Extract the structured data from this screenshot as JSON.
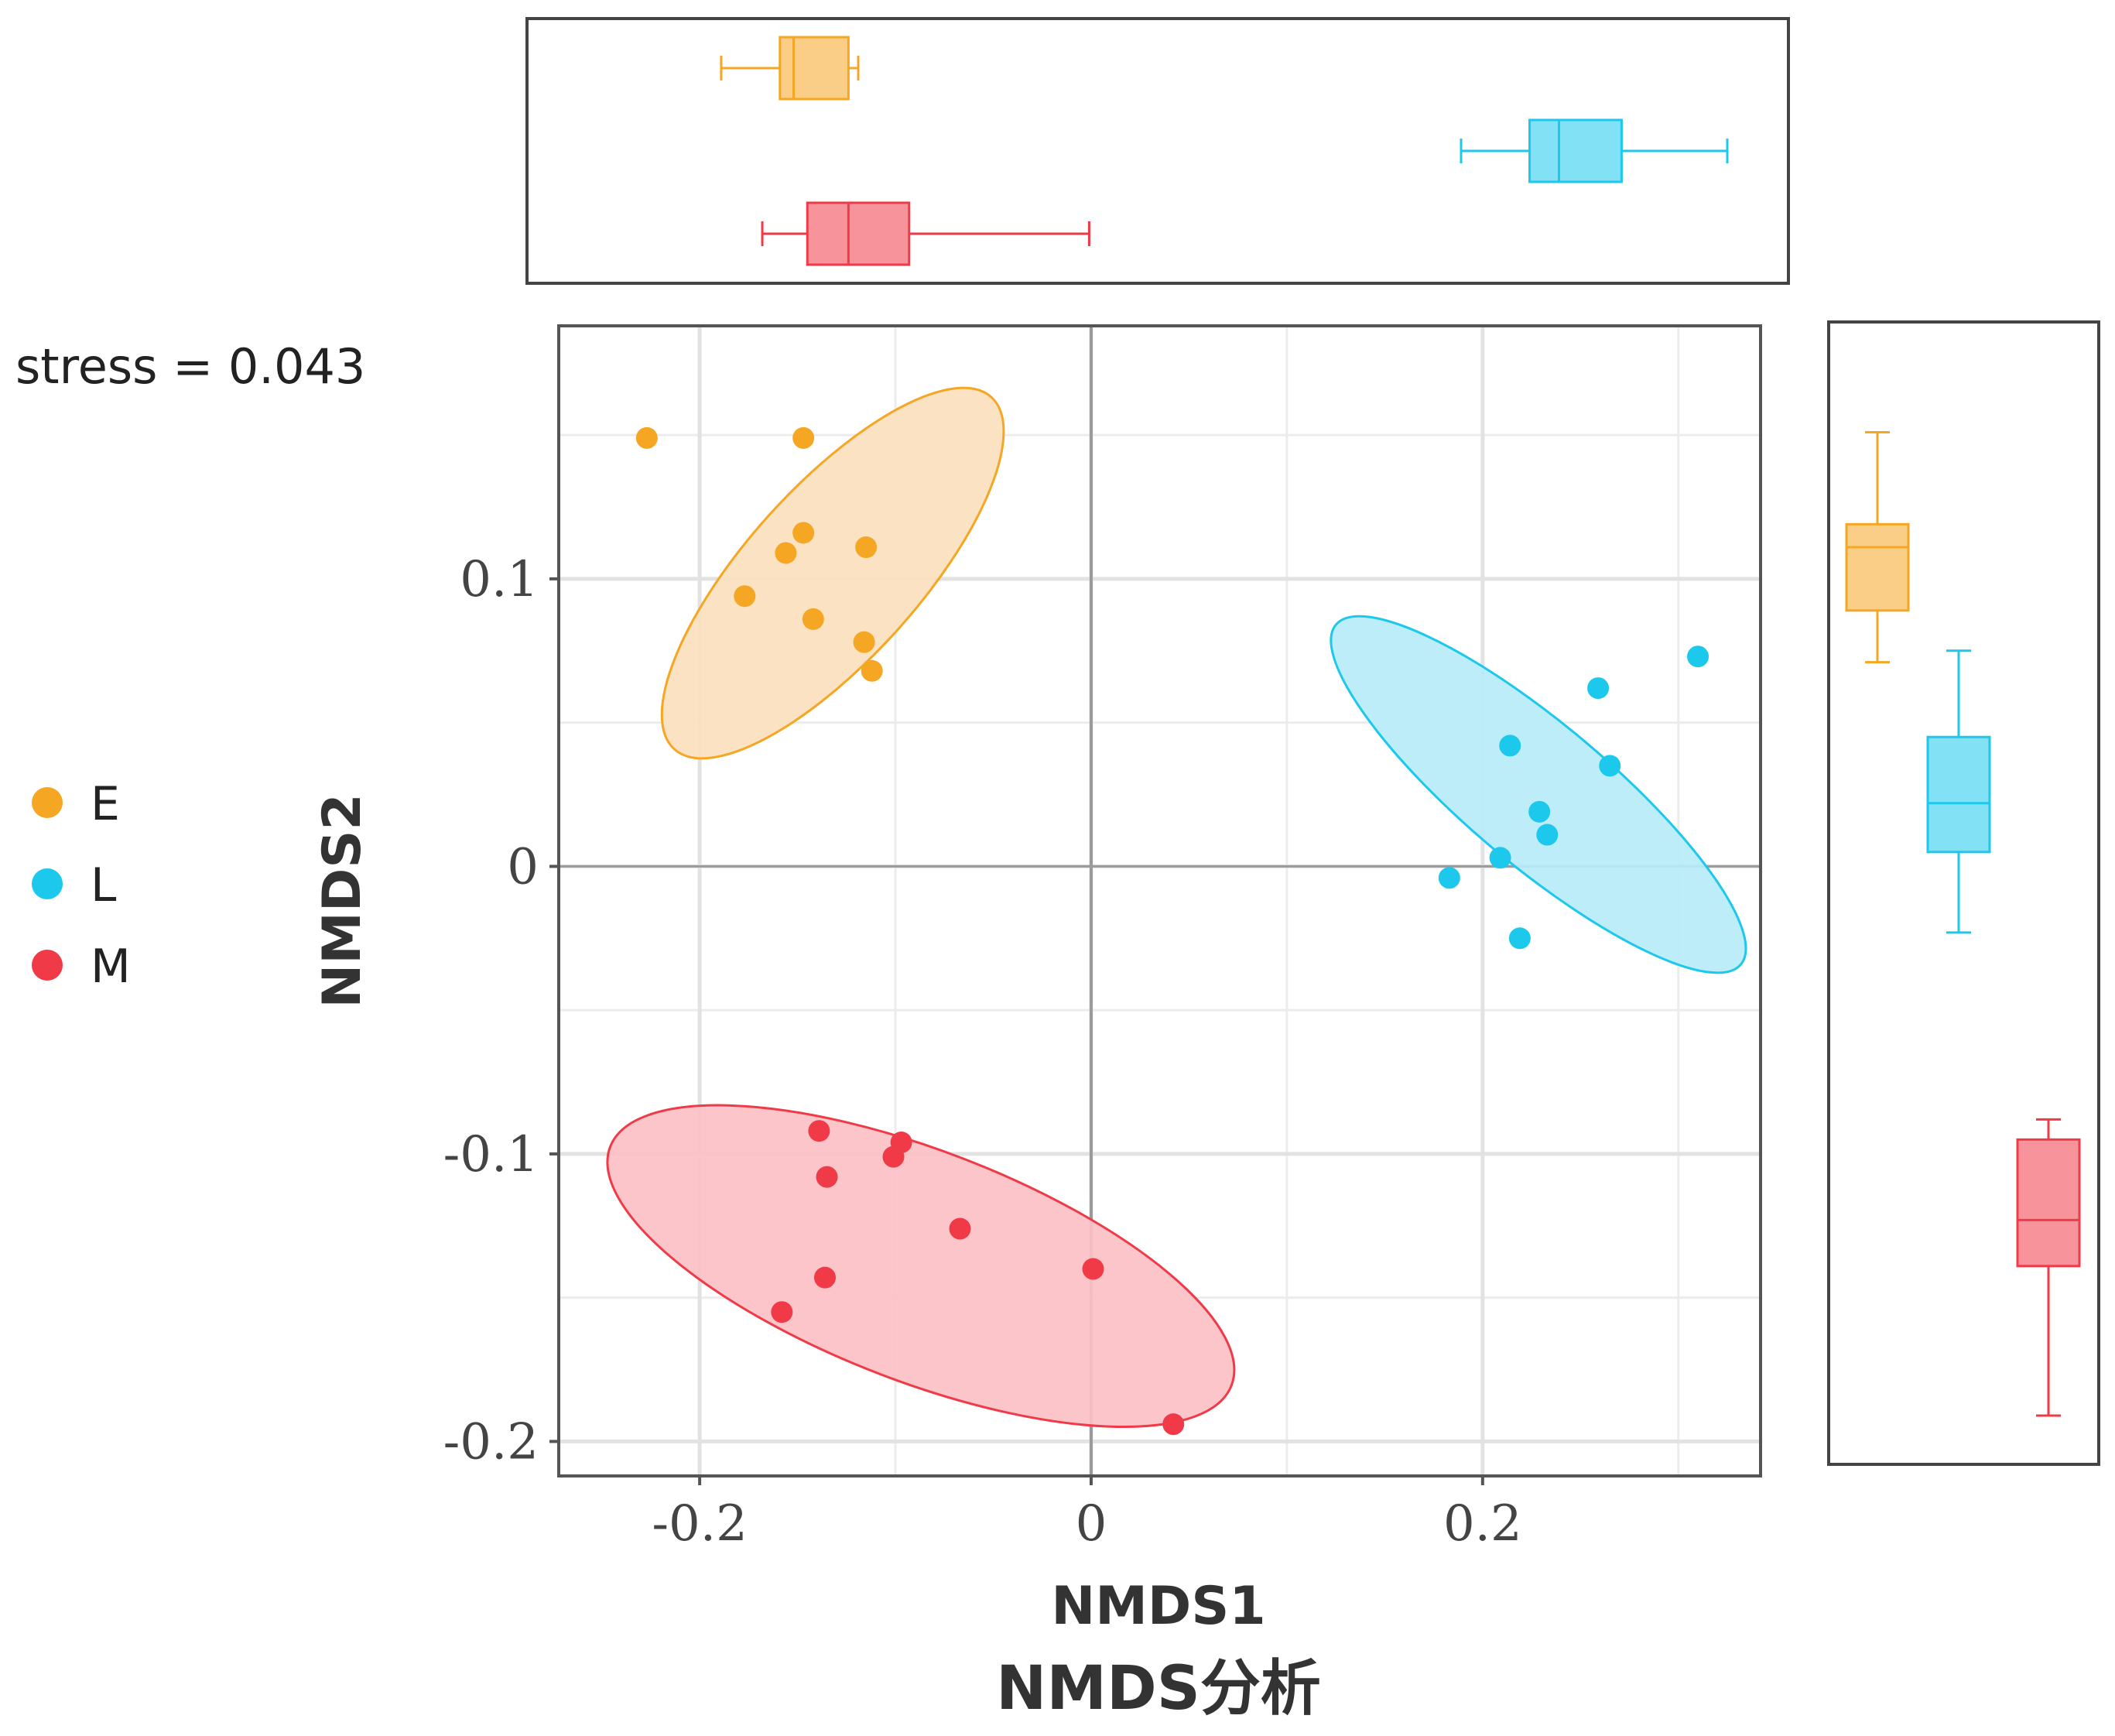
{
  "chart_data": {
    "type": "scatter",
    "title": "NMDS分析",
    "xlabel": "NMDS1",
    "ylabel": "NMDS2",
    "annotation": "stress = 0.043",
    "xlim": [
      -0.272,
      0.342
    ],
    "ylim": [
      -0.212,
      0.188
    ],
    "x_ticks": [
      -0.2,
      0,
      0.2
    ],
    "x_tick_labels": [
      "-0.2",
      "0",
      "0.2"
    ],
    "y_ticks": [
      -0.2,
      -0.1,
      0,
      0.1
    ],
    "y_tick_labels": [
      "-0.2",
      "-0.1",
      "0",
      "0.1"
    ],
    "grid": true,
    "legend": {
      "position": "left",
      "entries": [
        {
          "name": "E",
          "color": "#f5a623"
        },
        {
          "name": "L",
          "color": "#1cc8ec"
        },
        {
          "name": "M",
          "color": "#f03a47"
        }
      ]
    },
    "series": [
      {
        "name": "E",
        "color": "#f5a623",
        "fill": "#fbe0bd",
        "points": [
          [
            -0.227,
            0.149
          ],
          [
            -0.147,
            0.149
          ],
          [
            -0.147,
            0.116
          ],
          [
            -0.156,
            0.109
          ],
          [
            -0.115,
            0.111
          ],
          [
            -0.177,
            0.094
          ],
          [
            -0.142,
            0.086
          ],
          [
            -0.116,
            0.078
          ],
          [
            -0.112,
            0.068
          ]
        ],
        "ellipse": {
          "cx": -0.132,
          "cy": 0.102,
          "rx": 0.121,
          "ry": 0.044,
          "angle_deg": -48
        },
        "boxplot_x": {
          "min": -0.189,
          "q1": -0.159,
          "median": -0.152,
          "q3": -0.124,
          "max": -0.119
        },
        "boxplot_y": {
          "min": 0.071,
          "q1": 0.089,
          "median": 0.111,
          "q3": 0.119,
          "max": 0.151
        }
      },
      {
        "name": "L",
        "color": "#1cc8ec",
        "fill": "#b7ecf7",
        "points": [
          [
            0.31,
            0.073
          ],
          [
            0.259,
            0.062
          ],
          [
            0.265,
            0.035
          ],
          [
            0.214,
            0.042
          ],
          [
            0.229,
            0.019
          ],
          [
            0.233,
            0.011
          ],
          [
            0.209,
            0.003
          ],
          [
            0.183,
            -0.004
          ],
          [
            0.219,
            -0.025
          ]
        ],
        "ellipse": {
          "cx": 0.2285,
          "cy": 0.025,
          "rx": 0.135,
          "ry": 0.036,
          "angle_deg": 40
        },
        "boxplot_x": {
          "min": 0.189,
          "q1": 0.224,
          "median": 0.239,
          "q3": 0.271,
          "max": 0.325
        },
        "boxplot_y": {
          "min": -0.023,
          "q1": 0.005,
          "median": 0.022,
          "q3": 0.045,
          "max": 0.075
        }
      },
      {
        "name": "M",
        "color": "#f03a47",
        "fill": "#fcc0c5",
        "points": [
          [
            -0.139,
            -0.092
          ],
          [
            -0.097,
            -0.096
          ],
          [
            -0.101,
            -0.101
          ],
          [
            -0.135,
            -0.108
          ],
          [
            -0.067,
            -0.126
          ],
          [
            0.001,
            -0.14
          ],
          [
            -0.136,
            -0.143
          ],
          [
            -0.158,
            -0.155
          ],
          [
            0.042,
            -0.194
          ]
        ],
        "ellipse": {
          "cx": -0.087,
          "cy": -0.139,
          "rx": 0.17,
          "ry": 0.059,
          "angle_deg": 21
        },
        "boxplot_x": {
          "min": -0.168,
          "q1": -0.145,
          "median": -0.124,
          "q3": -0.093,
          "max": -0.001
        },
        "boxplot_y": {
          "min": -0.191,
          "q1": -0.139,
          "median": -0.123,
          "q3": -0.095,
          "max": -0.088
        }
      }
    ]
  }
}
